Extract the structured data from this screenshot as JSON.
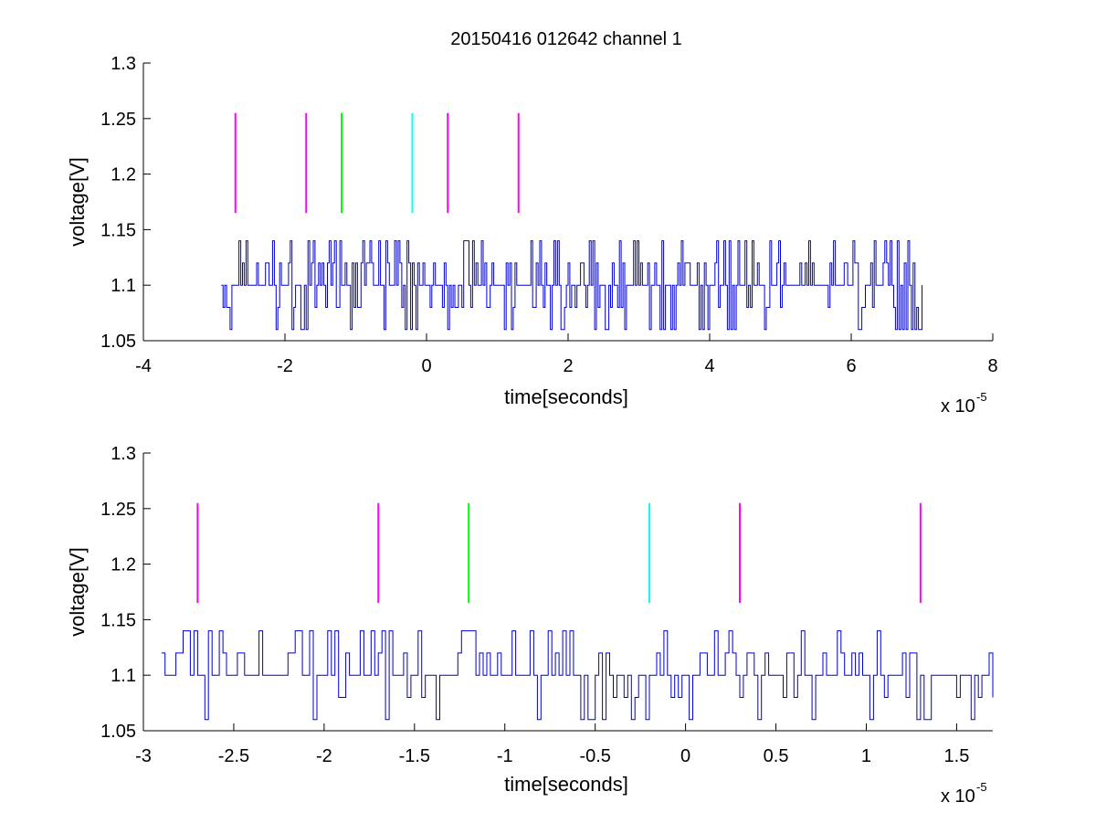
{
  "figure": {
    "title": "20150416 012642 channel 1"
  },
  "colors": {
    "trace": "#0000cc",
    "magenta": "#ff00ff",
    "green": "#00ff00",
    "cyan": "#00ffff",
    "axes": "#000000"
  },
  "chart_data": [
    {
      "type": "line",
      "title": "20150416 012642 channel 1",
      "xlabel": "time[seconds]",
      "ylabel": "voltage[V]",
      "x_exponent_label": "x 10",
      "x_exponent_power": "-5",
      "xlim": [
        -4,
        8
      ],
      "ylim": [
        1.05,
        1.3
      ],
      "xticks": [
        -4,
        -2,
        0,
        2,
        4,
        6,
        8
      ],
      "xtick_labels": [
        "-4",
        "-2",
        "0",
        "2",
        "4",
        "6",
        "8"
      ],
      "yticks": [
        1.05,
        1.1,
        1.15,
        1.2,
        1.25,
        1.3
      ],
      "ytick_labels": [
        "1.05",
        "1.1",
        "1.15",
        "1.2",
        "1.25",
        "1.3"
      ],
      "grid": false,
      "series": [
        {
          "kind": "signal",
          "x_range": [
            -2.9,
            7.0
          ],
          "levels": [
            1.06,
            1.08,
            1.1,
            1.12,
            1.14
          ],
          "baseline": 1.1
        }
      ],
      "markers": [
        {
          "x": -2.7,
          "y0": 1.165,
          "y1": 1.255,
          "color": "magenta"
        },
        {
          "x": -1.7,
          "y0": 1.165,
          "y1": 1.255,
          "color": "magenta"
        },
        {
          "x": -1.2,
          "y0": 1.165,
          "y1": 1.255,
          "color": "green"
        },
        {
          "x": -0.2,
          "y0": 1.165,
          "y1": 1.255,
          "color": "cyan"
        },
        {
          "x": 0.3,
          "y0": 1.165,
          "y1": 1.255,
          "color": "magenta"
        },
        {
          "x": 1.3,
          "y0": 1.165,
          "y1": 1.255,
          "color": "magenta"
        }
      ]
    },
    {
      "type": "line",
      "title": "",
      "xlabel": "time[seconds]",
      "ylabel": "voltage[V]",
      "x_exponent_label": "x 10",
      "x_exponent_power": "-5",
      "xlim": [
        -3.0,
        1.7
      ],
      "ylim": [
        1.05,
        1.3
      ],
      "xticks": [
        -3,
        -2.5,
        -2,
        -1.5,
        -1,
        -0.5,
        0,
        0.5,
        1,
        1.5
      ],
      "xtick_labels": [
        "-3",
        "-2.5",
        "-2",
        "-1.5",
        "-1",
        "-0.5",
        "0",
        "0.5",
        "1",
        "1.5"
      ],
      "yticks": [
        1.05,
        1.1,
        1.15,
        1.2,
        1.25,
        1.3
      ],
      "ytick_labels": [
        "1.05",
        "1.1",
        "1.15",
        "1.2",
        "1.25",
        "1.3"
      ],
      "grid": false,
      "series": [
        {
          "kind": "signal",
          "x_range": [
            -2.9,
            1.7
          ],
          "levels": [
            1.06,
            1.08,
            1.1,
            1.12,
            1.14
          ],
          "baseline": 1.1
        }
      ],
      "markers": [
        {
          "x": -2.7,
          "y0": 1.165,
          "y1": 1.255,
          "color": "magenta"
        },
        {
          "x": -1.7,
          "y0": 1.165,
          "y1": 1.255,
          "color": "magenta"
        },
        {
          "x": -1.2,
          "y0": 1.165,
          "y1": 1.255,
          "color": "green"
        },
        {
          "x": -0.2,
          "y0": 1.165,
          "y1": 1.255,
          "color": "cyan"
        },
        {
          "x": 0.3,
          "y0": 1.165,
          "y1": 1.255,
          "color": "magenta"
        },
        {
          "x": 1.3,
          "y0": 1.165,
          "y1": 1.255,
          "color": "magenta"
        }
      ]
    }
  ]
}
